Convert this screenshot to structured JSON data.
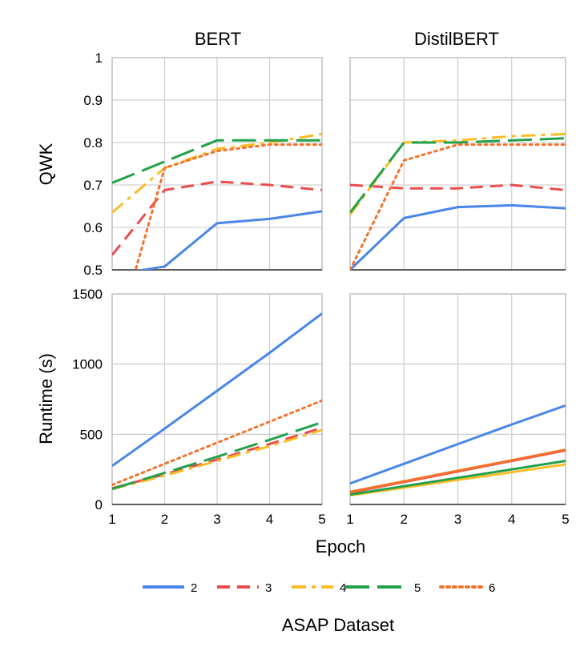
{
  "chart_data": {
    "type": "line",
    "x": [
      1,
      2,
      3,
      4,
      5
    ],
    "xlabel": "Epoch",
    "footer": "ASAP Dataset",
    "legend": {
      "placement": "bottom",
      "entries": [
        {
          "label": "2",
          "color": "#4a86e8",
          "dash": "solid"
        },
        {
          "label": "3",
          "color": "#e94c4c",
          "dash": "dashed"
        },
        {
          "label": "4",
          "color": "#fbbc28",
          "dash": "dashdot"
        },
        {
          "label": "5",
          "color": "#22a14a",
          "dash": "longdash"
        },
        {
          "label": "6",
          "color": "#f4732c",
          "dash": "dotted"
        }
      ]
    },
    "rows": [
      {
        "key": "qwk",
        "ylabel": "QWK",
        "ylim": [
          0.5,
          1
        ],
        "yticks": [
          "1",
          "0.9",
          "0.8",
          "0.7",
          "0.6",
          "0.5"
        ],
        "ytick_values": [
          1,
          0.9,
          0.8,
          0.7,
          0.6,
          0.5
        ]
      },
      {
        "key": "runtime",
        "ylabel": "Runtime (s)",
        "ylim": [
          0,
          1500
        ],
        "yticks": [
          "1500",
          "1000",
          "500",
          "0"
        ],
        "ytick_values": [
          1500,
          1000,
          500,
          0
        ]
      }
    ],
    "columns": [
      {
        "key": "bert",
        "title": "BERT"
      },
      {
        "key": "distil",
        "title": "DistilBERT"
      }
    ],
    "xtick_labels": {
      "bert": [
        "1",
        "2",
        "3",
        "4",
        "5"
      ],
      "distil": [
        "1",
        "2",
        "3",
        "4",
        "5"
      ]
    },
    "panels": [
      {
        "row": "qwk",
        "col": "bert",
        "series": [
          {
            "name": "2",
            "x": [
              1,
              1.5,
              2,
              3,
              4,
              5
            ],
            "values": [
              0.48,
              0.498,
              0.508,
              0.61,
              0.62,
              0.638
            ]
          },
          {
            "name": "3",
            "x": [
              1,
              2,
              3,
              4,
              5
            ],
            "values": [
              0.535,
              0.688,
              0.708,
              0.7,
              0.688
            ]
          },
          {
            "name": "4",
            "x": [
              1,
              2,
              3,
              4,
              5
            ],
            "values": [
              0.635,
              0.74,
              0.785,
              0.8,
              0.82
            ]
          },
          {
            "name": "5",
            "x": [
              1,
              2,
              3,
              4,
              5
            ],
            "values": [
              0.705,
              0.755,
              0.805,
              0.805,
              0.805
            ]
          },
          {
            "name": "6",
            "x": [
              1,
              1.4,
              2,
              3,
              4,
              5
            ],
            "values": [
              0.38,
              0.48,
              0.74,
              0.78,
              0.795,
              0.795
            ]
          }
        ]
      },
      {
        "row": "qwk",
        "col": "distil",
        "series": [
          {
            "name": "2",
            "x": [
              1,
              2,
              3,
              4,
              5
            ],
            "values": [
              0.5,
              0.622,
              0.648,
              0.652,
              0.645
            ]
          },
          {
            "name": "3",
            "x": [
              1,
              2,
              3,
              4,
              5
            ],
            "values": [
              0.7,
              0.692,
              0.692,
              0.7,
              0.688
            ]
          },
          {
            "name": "4",
            "x": [
              1,
              2,
              3,
              4,
              5
            ],
            "values": [
              0.63,
              0.8,
              0.805,
              0.815,
              0.82
            ]
          },
          {
            "name": "5",
            "x": [
              1,
              2,
              3,
              4,
              5
            ],
            "values": [
              0.635,
              0.8,
              0.8,
              0.805,
              0.81
            ]
          },
          {
            "name": "6",
            "x": [
              1,
              2,
              3,
              4,
              5
            ],
            "values": [
              0.5,
              0.758,
              0.795,
              0.795,
              0.795
            ]
          }
        ]
      },
      {
        "row": "runtime",
        "col": "bert",
        "series": [
          {
            "name": "2",
            "x": [
              1,
              2,
              3,
              4,
              5
            ],
            "values": [
              275,
              540,
              810,
              1080,
              1360
            ]
          },
          {
            "name": "3",
            "x": [
              1,
              2,
              3,
              4,
              5
            ],
            "values": [
              115,
              215,
              320,
              430,
              545
            ]
          },
          {
            "name": "4",
            "x": [
              1,
              2,
              3,
              4,
              5
            ],
            "values": [
              110,
              205,
              310,
              415,
              530
            ]
          },
          {
            "name": "5",
            "x": [
              1,
              2,
              3,
              4,
              5
            ],
            "values": [
              110,
              225,
              340,
              460,
              585
            ]
          },
          {
            "name": "6",
            "x": [
              1,
              2,
              3,
              4,
              5
            ],
            "values": [
              140,
              290,
              440,
              590,
              740
            ]
          }
        ]
      },
      {
        "row": "runtime",
        "col": "distil",
        "series": [
          {
            "name": "2",
            "x": [
              1,
              2,
              3,
              4,
              5
            ],
            "values": [
              150,
              290,
              430,
              570,
              705
            ]
          },
          {
            "name": "3",
            "x": [
              1,
              2,
              3,
              4,
              5
            ],
            "values": [
              85,
              160,
              235,
              310,
              385
            ]
          },
          {
            "name": "4",
            "x": [
              1,
              2,
              3,
              4,
              5
            ],
            "values": [
              65,
              120,
              175,
              230,
              285
            ]
          },
          {
            "name": "5",
            "x": [
              1,
              2,
              3,
              4,
              5
            ],
            "values": [
              70,
              130,
              190,
              250,
              310
            ]
          },
          {
            "name": "6",
            "x": [
              1,
              2,
              3,
              4,
              5
            ],
            "values": [
              90,
              165,
              240,
              315,
              390
            ]
          }
        ]
      }
    ]
  }
}
